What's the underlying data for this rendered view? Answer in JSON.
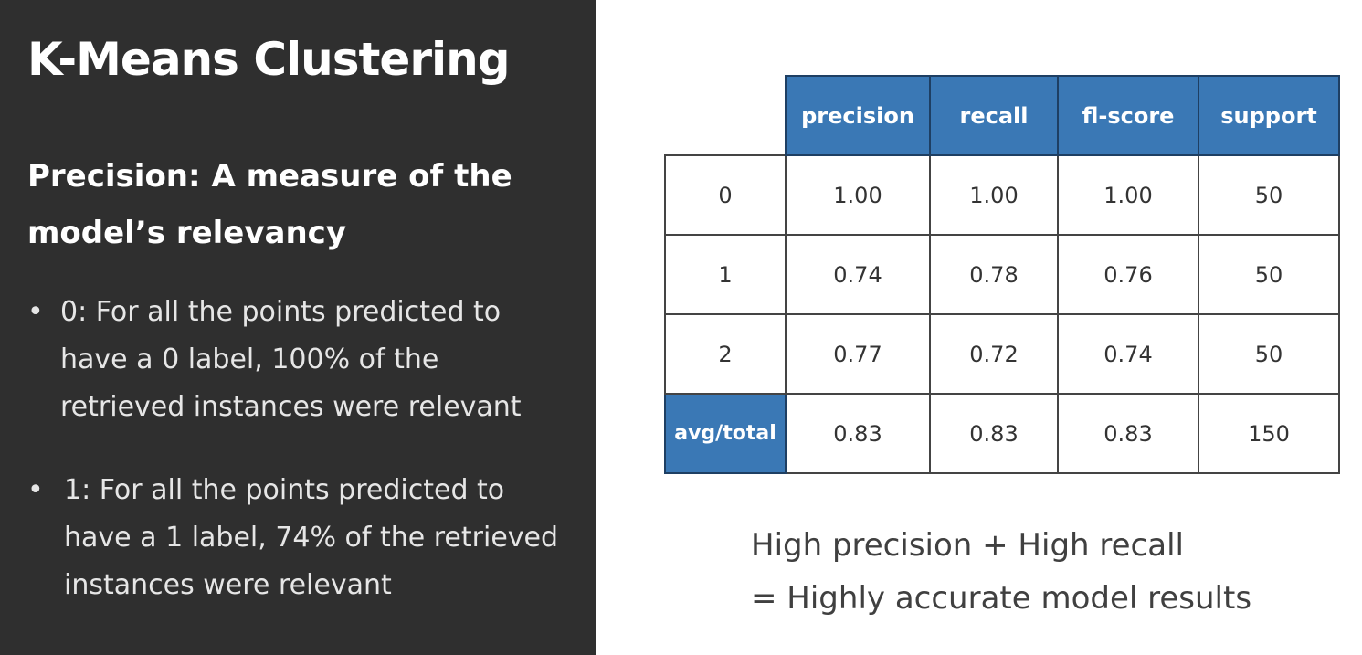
{
  "slide": {
    "title": "K-Means Clustering",
    "subtitle": "Precision:  A measure of the model’s relevancy",
    "bullets": [
      {
        "marker": "•",
        "text": "0: For all the points predicted to have a 0 label, 100% of the retrieved instances were relevant"
      },
      {
        "marker": "•",
        "text": "1: For all the points predicted to have a 1 label, 74% of the retrieved instances were relevant"
      }
    ],
    "note": {
      "line1": "High precision + High recall",
      "line2": "= Highly accurate model results"
    },
    "colors": {
      "left_panel": "#2f2f2f",
      "header_blue": "#3a78b5"
    }
  },
  "table": {
    "headers": [
      "precision",
      "recall",
      "fl-score",
      "support"
    ],
    "rows": [
      {
        "label": "0",
        "values": [
          "1.00",
          "1.00",
          "1.00",
          "50"
        ]
      },
      {
        "label": "1",
        "values": [
          "0.74",
          "0.78",
          "0.76",
          "50"
        ]
      },
      {
        "label": "2",
        "values": [
          "0.77",
          "0.72",
          "0.74",
          "50"
        ]
      },
      {
        "label": "avg/total",
        "values": [
          "0.83",
          "0.83",
          "0.83",
          "150"
        ]
      }
    ]
  }
}
